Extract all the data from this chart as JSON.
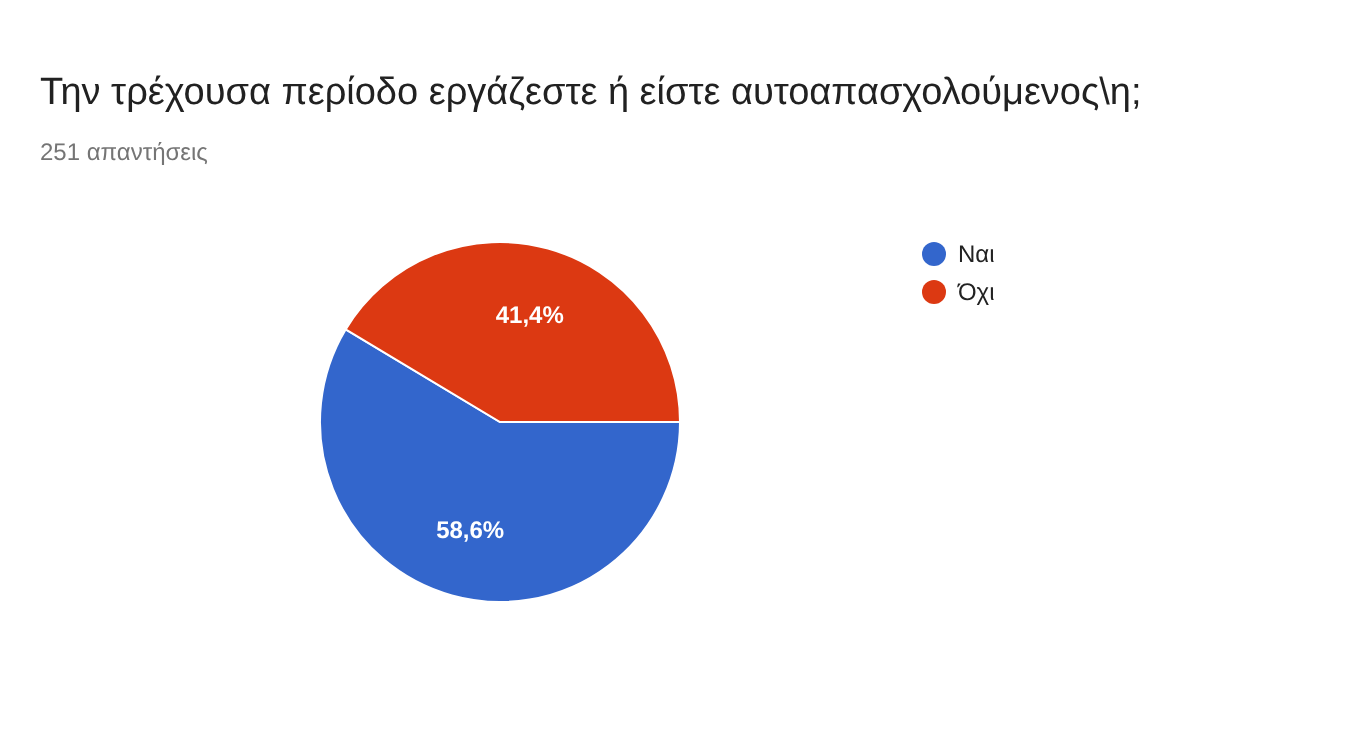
{
  "chart_data": {
    "type": "pie",
    "title": "Την τρέχουσα περίοδο εργάζεστε ή είστε αυτοαπασχολούμενος\\η;",
    "subtitle": "251 απαντήσεις",
    "categories": [
      "Ναι",
      "Όχι"
    ],
    "values": [
      58.6,
      41.4
    ],
    "colors": [
      "#3366cc",
      "#dc3912"
    ],
    "value_labels": [
      "58,6%",
      "41,4%"
    ],
    "legend": "right"
  }
}
